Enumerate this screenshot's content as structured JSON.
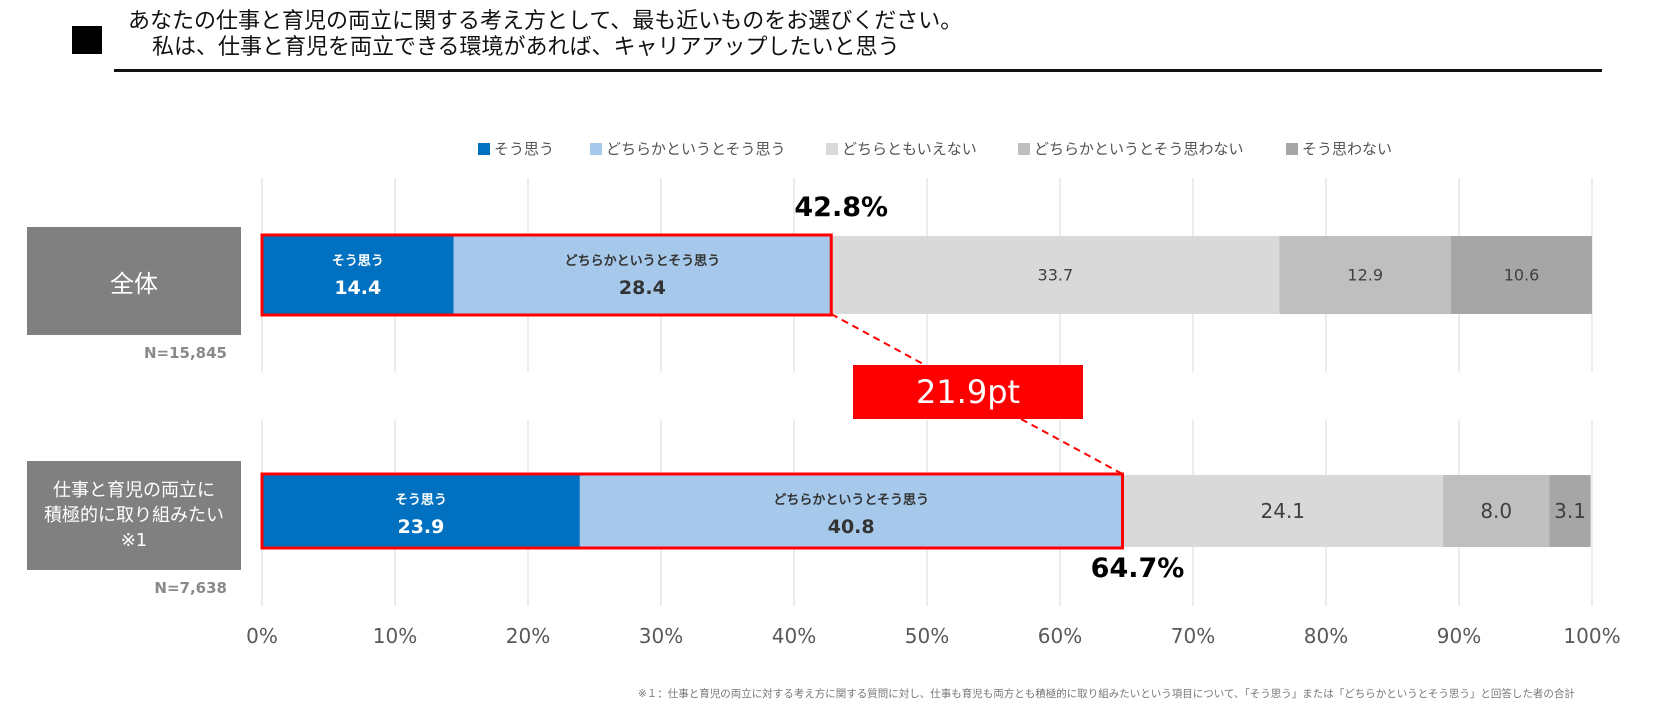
{
  "header": {
    "line1": "あなたの仕事と育児の両立に関する考え方として、最も近いものをお選びください。",
    "line2": "私は、仕事と育児を両立できる環境があれば、キャリアアップしたいと思う"
  },
  "footnote": "※１：仕事と育児の両立に対する考え方に関する質問に対し、仕事も育児も両方とも積極的に取り組みたいという項目について、「そう思う」または「どちらかというとそう思う」と回答した者の合計",
  "chart_data": {
    "type": "bar",
    "orientation": "horizontal-stacked-100",
    "categories": [
      "全体",
      "仕事と育児の両立に積極的に取り組みたい ※1"
    ],
    "category_lines": [
      [
        "全体"
      ],
      [
        "仕事と育児の両立に",
        "積極的に取り組みたい",
        "※1"
      ]
    ],
    "sample_sizes": [
      "N=15,845",
      "N=7,638"
    ],
    "series": [
      {
        "name": "そう思う",
        "values": [
          14.4,
          23.9
        ],
        "color": "#0070c0"
      },
      {
        "name": "どちらかというとそう思う",
        "values": [
          28.4,
          40.8
        ],
        "color": "#a6c8ea"
      },
      {
        "name": "どちらともいえない",
        "values": [
          33.7,
          24.1
        ],
        "color": "#d9d9d9"
      },
      {
        "name": "どちらかというとそう思わない",
        "values": [
          12.9,
          8.0
        ],
        "color": "#bfbfbf"
      },
      {
        "name": "そう思わない",
        "values": [
          10.6,
          3.1
        ],
        "color": "#a6a6a6"
      }
    ],
    "xlim": [
      0,
      100
    ],
    "x_ticks": [
      "0%",
      "10%",
      "20%",
      "30%",
      "40%",
      "50%",
      "60%",
      "70%",
      "80%",
      "90%",
      "100%"
    ],
    "grid": true,
    "legend_position": "top",
    "annotations": {
      "sum_labels": [
        "42.8%",
        "64.7%"
      ],
      "difference_label": "21.9pt",
      "highlight_color": "#ff0000"
    }
  }
}
